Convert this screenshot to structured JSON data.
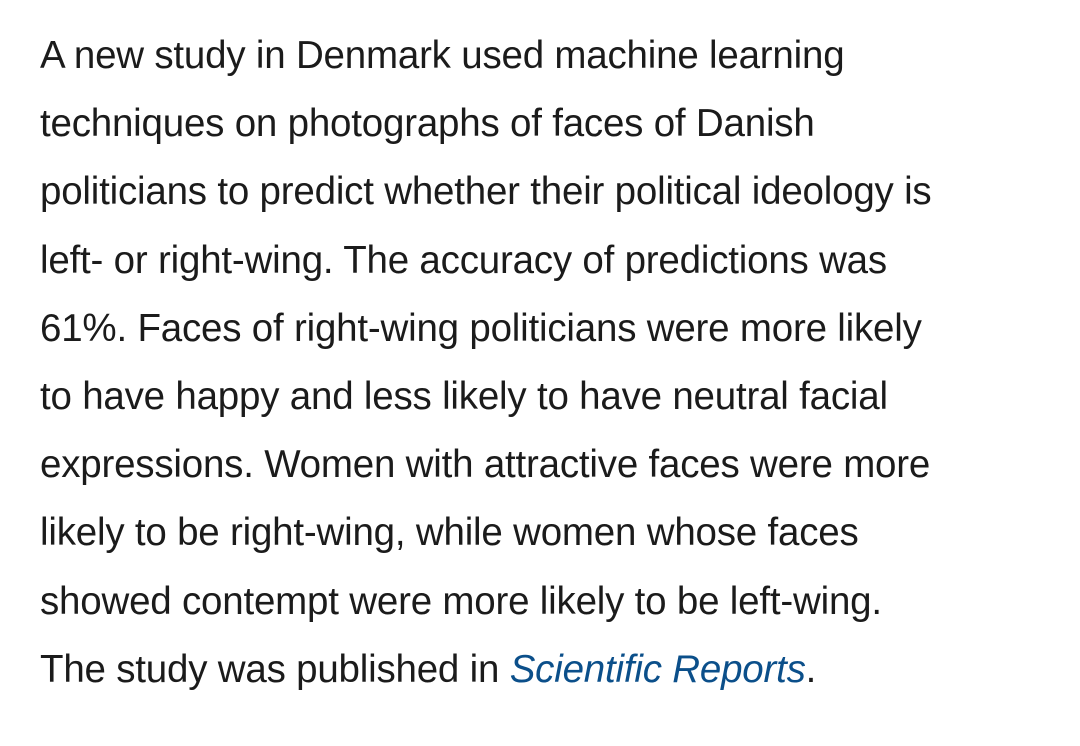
{
  "article": {
    "lines": [
      "A new study in Denmark used machine learning",
      "techniques on photographs of faces of Danish",
      "politicians to predict whether their political ideology is",
      "left- or right-wing. The accuracy of predictions was",
      "61%. Faces of right-wing politicians were more likely",
      "to have happy and less likely to have neutral facial",
      "expressions. Women with attractive faces were more",
      "likely to be right-wing, while women whose faces",
      "showed contempt were more likely to be left-wing."
    ],
    "last_line_prefix": "The study was published in ",
    "journal_link": "Scientific Reports",
    "last_line_suffix": ".",
    "link_color": "#0b4f8a",
    "text_color": "#1b1b1b"
  }
}
